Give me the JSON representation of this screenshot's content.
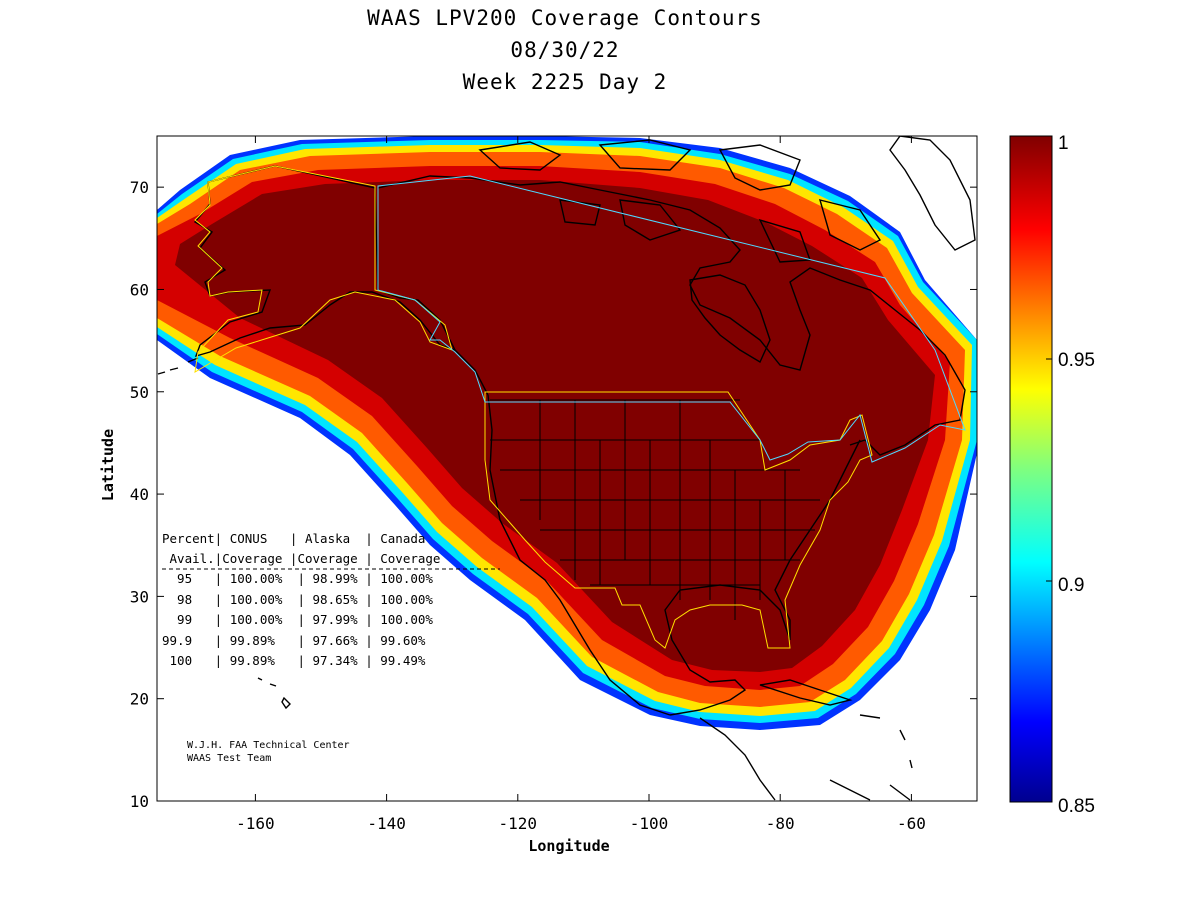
{
  "title": {
    "line1": "WAAS LPV200 Coverage Contours",
    "line2": "08/30/22",
    "line3": "Week 2225 Day 2"
  },
  "axes": {
    "xlabel": "Longitude",
    "ylabel": "Latitude",
    "xlim": [
      -175,
      -50
    ],
    "ylim": [
      10,
      75
    ],
    "xticks": [
      "-160",
      "-140",
      "-120",
      "-100",
      "-80",
      "-60"
    ],
    "yticks": [
      "10",
      "20",
      "30",
      "40",
      "50",
      "60",
      "70"
    ]
  },
  "colorbar": {
    "ticks": [
      "1",
      "0.95",
      "0.9",
      "0.85"
    ],
    "range": [
      0.85,
      1
    ],
    "colormap": "jet"
  },
  "table": {
    "header1": "Percent| CONUS   | Alaska  | Canada",
    "header2": " Avail.|Coverage |Coverage | Coverage",
    "rows": [
      "  95   | 100.00%  | 98.99% | 100.00%",
      "  98   | 100.00%  | 98.65% | 100.00%",
      "  99   | 100.00%  | 97.99% | 100.00%",
      "99.9   | 99.89%   | 97.66% | 99.60%",
      " 100   | 99.89%   | 97.34% | 99.49%"
    ]
  },
  "credit": {
    "line1": "W.J.H. FAA Technical Center",
    "line2": "WAAS Test Team"
  },
  "colors": {
    "full_coverage": "#800000",
    "contour_red": "#cc0000",
    "contour_orange": "#ff6600",
    "contour_yellow": "#ffee00",
    "contour_cyan": "#00e5ff",
    "contour_blue": "#0033ff",
    "conus_boundary": "#ffe000",
    "canada_boundary": "#4fd8ff"
  }
}
